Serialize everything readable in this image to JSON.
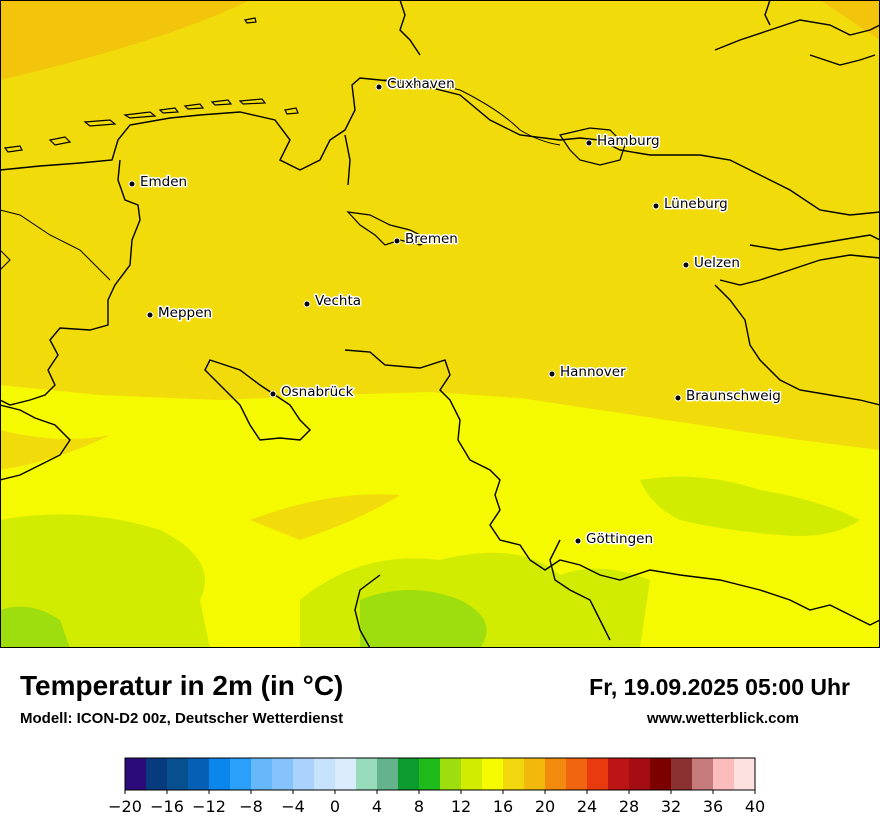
{
  "title": "Temperatur in 2m (in °C)",
  "model": "Modell: ICON-D2 00z, Deutscher Wetterdienst",
  "datetime": "Fr, 19.09.2025 05:00 Uhr",
  "website": "www.wetterblick.com",
  "cities": {
    "cuxhaven": "Cuxhaven",
    "hamburg": "Hamburg",
    "emden": "Emden",
    "lueneburg": "Lüneburg",
    "bremen": "Bremen",
    "uelzen": "Uelzen",
    "vechta": "Vechta",
    "meppen": "Meppen",
    "hannover": "Hannover",
    "osnabrueck": "Osnabrück",
    "braunschweig": "Braunschweig",
    "goettingen": "Göttingen"
  },
  "colorbar": {
    "min": -20,
    "max": 40,
    "tick_labels": [
      "−20",
      "−16",
      "−12",
      "−8",
      "−4",
      "0",
      "4",
      "8",
      "12",
      "16",
      "20",
      "24",
      "28",
      "32",
      "36",
      "40"
    ],
    "colors": [
      "#2b0a7a",
      "#083a7e",
      "#06508f",
      "#0560b5",
      "#0a86ec",
      "#2aa0fb",
      "#67b7fb",
      "#86c3fc",
      "#a9d3fd",
      "#c6e2fd",
      "#dbecfd",
      "#98dcbc",
      "#64b38c",
      "#0b9b2e",
      "#1fbb1a",
      "#9edd0e",
      "#d1ec00",
      "#f5fa00",
      "#f2d70d",
      "#f2b90c",
      "#f28a0e",
      "#f16410",
      "#e83a0e",
      "#bd1515",
      "#a40d13",
      "#7c0000",
      "#8c3131",
      "#c67a7a",
      "#fcbcbc",
      "#fde1e1"
    ]
  }
}
